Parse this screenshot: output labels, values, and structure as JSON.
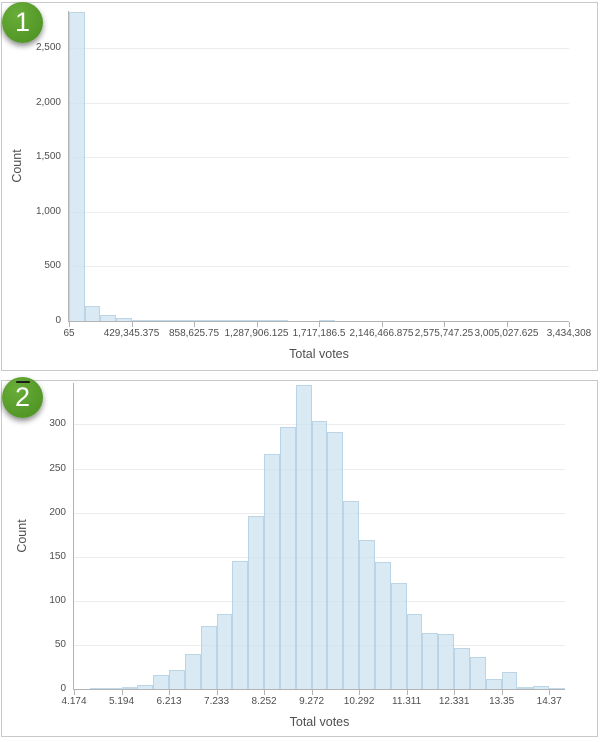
{
  "panels": [
    {
      "badge_label": "1",
      "ylabel": "Count",
      "xlabel": "Total votes"
    },
    {
      "badge_label": "2",
      "ylabel": "Count",
      "xlabel": "Total votes"
    }
  ],
  "chart_data": [
    {
      "type": "bar",
      "title": "",
      "xlabel": "Total votes",
      "ylabel": "Count",
      "xlim": [
        65,
        3434308
      ],
      "ylim": [
        0,
        2840
      ],
      "bin_start": 65,
      "bin_width": 107320.094,
      "counts": [
        2832,
        142,
        56,
        31,
        7,
        5,
        4,
        3,
        2,
        2,
        1,
        1,
        1,
        1,
        0,
        0,
        1,
        0,
        0,
        0,
        0,
        0,
        0,
        0,
        0,
        0,
        0,
        0,
        0,
        0,
        0,
        0
      ],
      "ticks_every_bins": 4,
      "x_tick_labels": [
        "65",
        "429,345.375",
        "858,625.75",
        "1,287,906.125",
        "1,717,186.5",
        "2,146,466.875",
        "2,575,747.25",
        "3,005,027.625",
        "3,434,308"
      ],
      "y_tick_values": [
        0,
        500,
        1000,
        1500,
        2000,
        2500
      ],
      "y_tick_labels": [
        "0",
        "500",
        "1,000",
        "1,500",
        "2,000",
        "2,500"
      ],
      "grid": true,
      "legend": "none"
    },
    {
      "type": "bar",
      "title": "",
      "xlabel": "Total votes",
      "ylabel": "Count",
      "xlim": [
        4.174,
        14.71
      ],
      "ylim": [
        0,
        347
      ],
      "bin_start": 4.174,
      "bin_width": 0.3399,
      "counts": [
        0,
        1,
        1,
        2,
        5,
        16,
        22,
        40,
        72,
        85,
        145,
        196,
        267,
        297,
        345,
        304,
        292,
        213,
        169,
        144,
        120,
        85,
        64,
        62,
        46,
        36,
        11,
        19,
        2,
        3,
        1
      ],
      "ticks_every_bins": 3,
      "x_tick_labels": [
        "4.174",
        "5.194",
        "6.213",
        "7.233",
        "8.252",
        "9.272",
        "10.292",
        "11.311",
        "12.331",
        "13.35",
        "14.37"
      ],
      "y_tick_values": [
        0,
        50,
        100,
        150,
        200,
        250,
        300
      ],
      "y_tick_labels": [
        "0",
        "50",
        "100",
        "150",
        "200",
        "250",
        "300"
      ],
      "grid": true,
      "legend": "none"
    }
  ],
  "colors": {
    "bar_fill": "#cde2f0",
    "bar_border": "#a3c6dd",
    "badge_green": "#529626",
    "panel_border": "#c9c9c9",
    "axis_line": "#b3b3b3",
    "gridline": "#ededed",
    "tick_text": "#4f4f4f"
  }
}
